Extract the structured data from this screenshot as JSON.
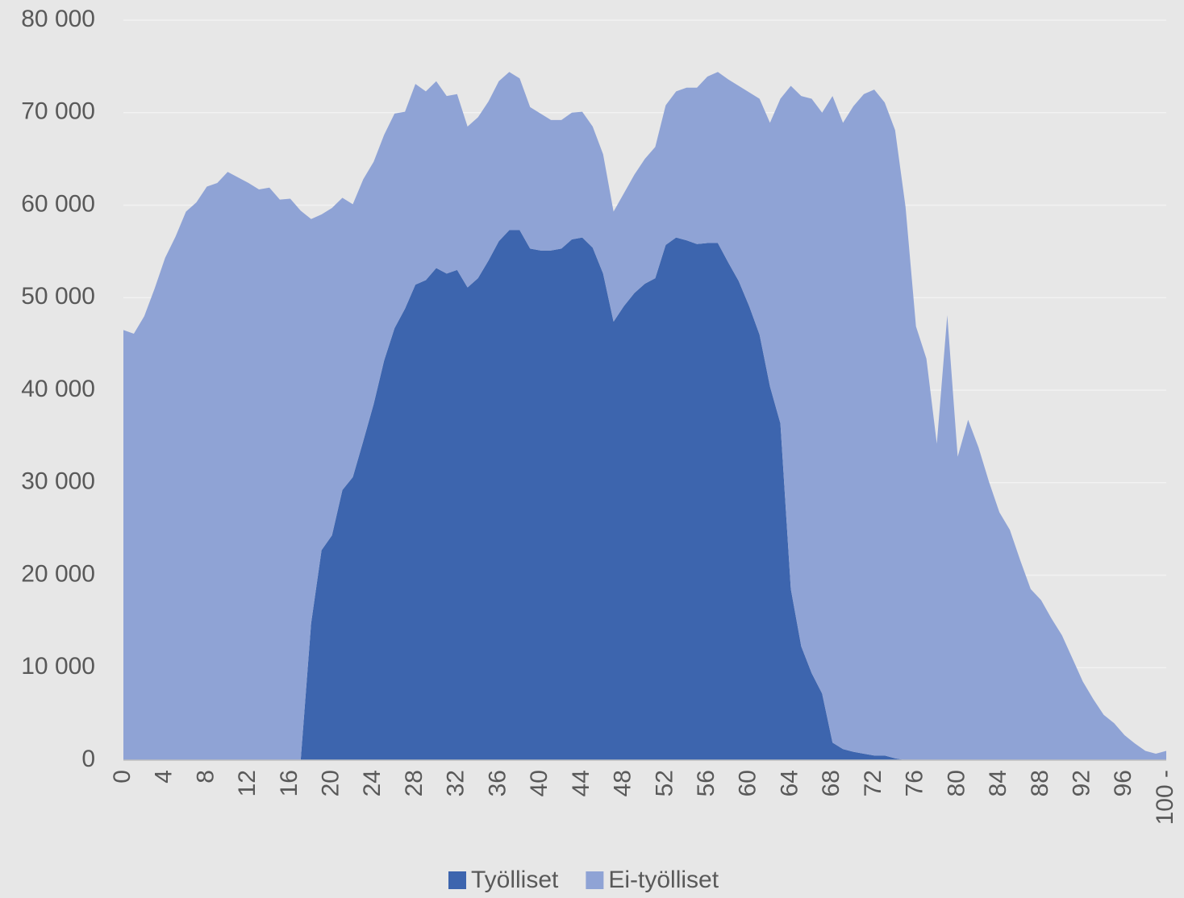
{
  "chart_data": {
    "type": "stacked_area",
    "categories": [
      "0",
      null,
      null,
      null,
      "4",
      null,
      null,
      null,
      "8",
      null,
      null,
      null,
      "12",
      null,
      null,
      null,
      "16",
      null,
      null,
      null,
      "20",
      null,
      null,
      null,
      "24",
      null,
      null,
      null,
      "28",
      null,
      null,
      null,
      "32",
      null,
      null,
      null,
      "36",
      null,
      null,
      null,
      "40",
      null,
      null,
      null,
      "44",
      null,
      null,
      null,
      "48",
      null,
      null,
      null,
      "52",
      null,
      null,
      null,
      "56",
      null,
      null,
      null,
      "60",
      null,
      null,
      null,
      "64",
      null,
      null,
      null,
      "68",
      null,
      null,
      null,
      "72",
      null,
      null,
      null,
      "76",
      null,
      null,
      null,
      "80",
      null,
      null,
      null,
      "84",
      null,
      null,
      null,
      "88",
      null,
      null,
      null,
      "92",
      null,
      null,
      null,
      "96",
      null,
      null,
      null,
      "100 -"
    ],
    "series": [
      {
        "name": "Työlliset",
        "color": "#3d65ae",
        "values": [
          0,
          0,
          0,
          0,
          0,
          0,
          0,
          0,
          0,
          0,
          0,
          0,
          0,
          0,
          0,
          0,
          0,
          0,
          14800,
          22700,
          24300,
          29200,
          30600,
          34500,
          38500,
          43200,
          46700,
          48800,
          51400,
          51900,
          53200,
          52600,
          53000,
          51100,
          52100,
          54000,
          56100,
          57300,
          57300,
          55300,
          55100,
          55100,
          55300,
          56300,
          56500,
          55400,
          52600,
          47400,
          49100,
          50500,
          51500,
          52100,
          55700,
          56500,
          56200,
          55800,
          55900,
          55900,
          53800,
          51800,
          49100,
          46000,
          40400,
          36400,
          18500,
          12300,
          9400,
          7200,
          1900,
          1200,
          900,
          700,
          500,
          500,
          200,
          0,
          0,
          0,
          0,
          0,
          0,
          0,
          0,
          0,
          0,
          0,
          0,
          0,
          0,
          0,
          0,
          0,
          0,
          0,
          0,
          0,
          0,
          0,
          0,
          0,
          0
        ]
      },
      {
        "name": "Ei-työlliset",
        "color": "#8fa3d5",
        "values": [
          46500,
          46100,
          48000,
          51000,
          54300,
          56600,
          59300,
          60300,
          62000,
          62400,
          63600,
          63000,
          62400,
          61700,
          61900,
          60600,
          60700,
          59400,
          43700,
          36300,
          35400,
          31600,
          29500,
          28300,
          26200,
          24400,
          23200,
          21300,
          21700,
          20400,
          20200,
          19200,
          19000,
          17400,
          17400,
          17200,
          17300,
          17100,
          16400,
          15300,
          14800,
          14100,
          13900,
          13700,
          13600,
          13100,
          12900,
          11900,
          12200,
          12800,
          13500,
          14200,
          15100,
          15800,
          16500,
          16900,
          18000,
          18500,
          19800,
          21100,
          23100,
          25500,
          28500,
          35100,
          54400,
          59500,
          62100,
          62800,
          69900,
          67700,
          69800,
          71300,
          72000,
          70600,
          67900,
          59800,
          46900,
          43400,
          34200,
          48100,
          32800,
          36800,
          33800,
          30100,
          26800,
          24900,
          21600,
          18500,
          17300,
          15300,
          13500,
          11000,
          8500,
          6600,
          4900,
          4000,
          2700,
          1800,
          1000,
          700,
          1000
        ]
      }
    ],
    "ylim": [
      0,
      80000
    ],
    "yticks": [
      0,
      {
        "value": 10000,
        "label": "10 000"
      },
      {
        "value": 20000,
        "label": "20 000"
      },
      {
        "value": 30000,
        "label": "30 000"
      },
      {
        "value": 40000,
        "label": "40 000"
      },
      {
        "value": 50000,
        "label": "50 000"
      },
      {
        "value": 60000,
        "label": "60 000"
      },
      {
        "value": 70000,
        "label": "70 000"
      },
      {
        "value": 80000,
        "label": "80 000"
      }
    ],
    "grid": true,
    "legend": "bottom"
  }
}
